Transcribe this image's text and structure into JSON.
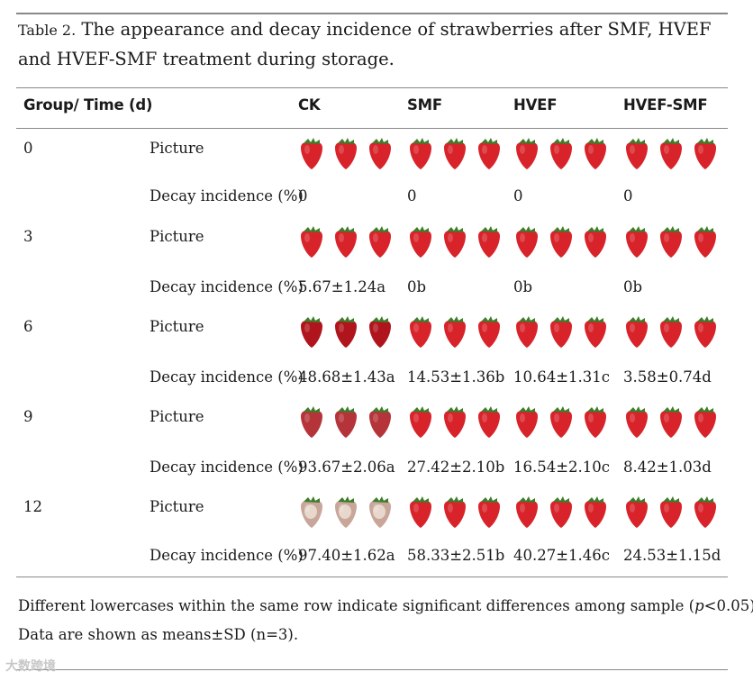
{
  "caption": {
    "label": "Table 2.",
    "text": " The appearance and decay incidence of strawberries after SMF, HVEF and HVEF-SMF treatment during storage."
  },
  "headers": {
    "group_time": "Group/ Time (d)",
    "ck": "CK",
    "smf": "SMF",
    "hvef": "HVEF",
    "hvef_smf": "HVEF-SMF"
  },
  "rows": [
    {
      "time": "0",
      "picture_label": "Picture",
      "decay_label": "Decay incidence (%)",
      "ck": "0",
      "smf": "0",
      "hvef": "0",
      "hvef_smf": "0"
    },
    {
      "time": "3",
      "picture_label": "Picture",
      "decay_label": "Decay incidence (%)",
      "ck": "5.67±1.24a",
      "smf": "0b",
      "hvef": "0b",
      "hvef_smf": "0b"
    },
    {
      "time": "6",
      "picture_label": "Picture",
      "decay_label": "Decay incidence (%)",
      "ck": "48.68±1.43a",
      "smf": "14.53±1.36b",
      "hvef": "10.64±1.31c",
      "hvef_smf": "3.58±0.74d"
    },
    {
      "time": "9",
      "picture_label": "Picture",
      "decay_label": "Decay incidence (%)",
      "ck": "93.67±2.06a",
      "smf": "27.42±2.10b",
      "hvef": "16.54±2.10c",
      "hvef_smf": "8.42±1.03d"
    },
    {
      "time": "12",
      "picture_label": "Picture",
      "decay_label": "Decay incidence (%)",
      "ck": "97.40±1.62a",
      "smf": "58.33±2.51b",
      "hvef": "40.27±1.46c",
      "hvef_smf": "24.53±1.15d"
    }
  ],
  "footnotes": {
    "line1_pre": "Different lowercases within the same row indicate significant differences among sample (",
    "line1_p": "p",
    "line1_post": "<0.05).",
    "line2": "Data are shown as means±SD (n=3)."
  },
  "watermark": "大数跨境",
  "colors": {
    "fresh": "#d8232a",
    "dark": "#b0141c",
    "spoiled": "#c9a69a",
    "leaf": "#3c7d2a"
  }
}
